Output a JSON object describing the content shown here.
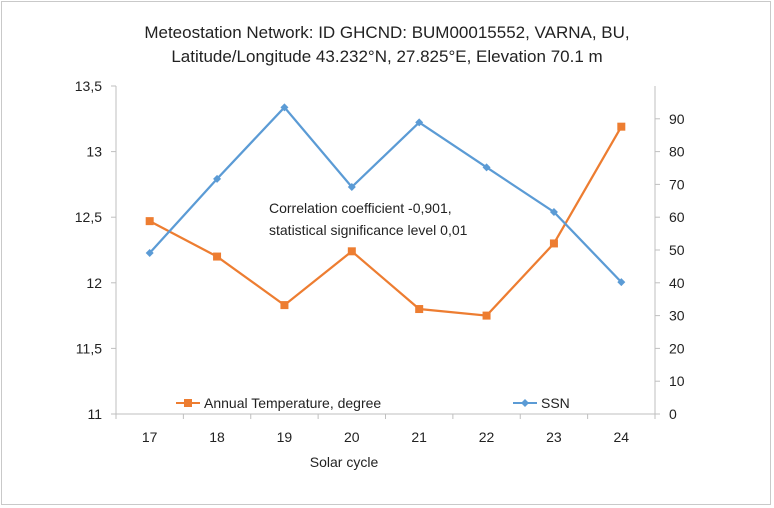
{
  "chart_data": {
    "type": "line",
    "title_lines": [
      "Meteostation  Network: ID GHCND: BUM00015552, VARNA, BU,",
      "Latitude/Longitude  43.232°N, 27.825°E, Elevation 70.1 m"
    ],
    "xlabel": "Solar cycle",
    "categories": [
      "17",
      "18",
      "19",
      "20",
      "21",
      "22",
      "23",
      "24"
    ],
    "y_left": {
      "range": [
        11,
        13.5
      ],
      "ticks": [
        11,
        11.5,
        12,
        12.5,
        13,
        13.5
      ],
      "tick_labels": [
        "11",
        "11,5",
        "12",
        "12,5",
        "13",
        "13,5"
      ]
    },
    "y_right": {
      "range": [
        0,
        100
      ],
      "ticks": [
        0,
        10,
        20,
        30,
        40,
        50,
        60,
        70,
        80,
        90
      ],
      "tick_labels": [
        "0",
        "10",
        "20",
        "30",
        "40",
        "50",
        "60",
        "70",
        "80",
        "90"
      ]
    },
    "series": [
      {
        "name": "Annual Temperature, degree",
        "axis": "left",
        "color": "#ED7D31",
        "marker": "square",
        "values": [
          12.47,
          12.2,
          11.83,
          12.24,
          11.8,
          11.75,
          12.3,
          13.19
        ]
      },
      {
        "name": "SSN",
        "axis": "right",
        "color": "#5B9BD5",
        "marker": "diamond",
        "values": [
          49.1,
          71.7,
          93.5,
          69.2,
          88.9,
          75.2,
          61.6,
          40.2
        ]
      }
    ],
    "annotation_lines": [
      "Correlation coefficient -0,901,",
      "statistical significance level 0,01"
    ],
    "legend_placement": "bottom-inside",
    "grid": false
  }
}
